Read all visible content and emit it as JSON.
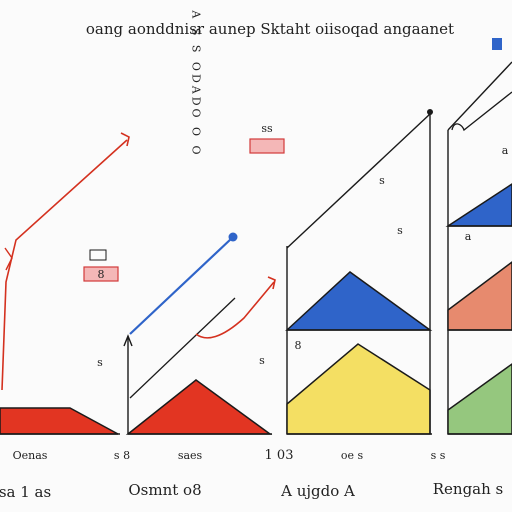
{
  "chart_data": {
    "type": "area",
    "title": "oang aonddnisr aunep Sktaht oiisoqad angaanet",
    "colors": {
      "red": "#e23522",
      "blue": "#2f64c9",
      "yellow": "#f4df63",
      "salmon": "#e78a6e",
      "green": "#95c77e",
      "ink": "#1a1a1a",
      "badge_fill": "#f4b7b7",
      "badge_stroke": "#d23a3a"
    },
    "panels": [
      {
        "top_label": "",
        "badge": "8",
        "corner_label": "",
        "side_label": "",
        "tick_label": "Oenas",
        "bottom_label": "sa 1 as",
        "areas": [
          {
            "color": "red",
            "shape": "trapezoid"
          }
        ],
        "trend": {
          "color": "red",
          "direction": "up"
        }
      },
      {
        "top_label": "A S S ODADO O O",
        "badge": "",
        "corner_label": "",
        "side_label": "s",
        "tick_label": "s 8",
        "bottom_label": "Osmnt o8",
        "areas": [
          {
            "color": "red",
            "shape": "triangle"
          }
        ],
        "trend": {
          "color": "blue",
          "direction": "up"
        }
      },
      {
        "top_label": "",
        "badge": "",
        "corner_label": "ss",
        "side_label": "s",
        "tick_label": "saes",
        "bottom_label": "A ujgdo A",
        "areas": [
          {
            "color": "blue",
            "shape": "triangle"
          },
          {
            "color": "yellow",
            "shape": "pentagon"
          }
        ],
        "trend": {
          "color": "red",
          "direction": "up"
        }
      },
      {
        "top_label": "",
        "badge": "",
        "corner_label": "",
        "side_label": "8",
        "tick_label": "1 03",
        "bottom_label": "",
        "areas": [],
        "trend": {
          "color": "ink",
          "direction": "up"
        }
      },
      {
        "top_label": "",
        "badge": "",
        "corner_label": "s",
        "side_label": "s",
        "tick_label": "oe s",
        "bottom_label": "",
        "areas": [],
        "trend": {
          "color": "ink",
          "direction": "up"
        }
      },
      {
        "top_label": "",
        "badge": "",
        "corner_label": "a",
        "side_label": "a",
        "tick_label": "s s",
        "bottom_label": "Rengah s",
        "areas": [
          {
            "color": "blue",
            "shape": "triangle"
          },
          {
            "color": "salmon",
            "shape": "triangle"
          },
          {
            "color": "green",
            "shape": "triangle"
          }
        ],
        "trend": {
          "color": "ink",
          "direction": "up"
        }
      }
    ],
    "grid": false,
    "legend": "none"
  }
}
